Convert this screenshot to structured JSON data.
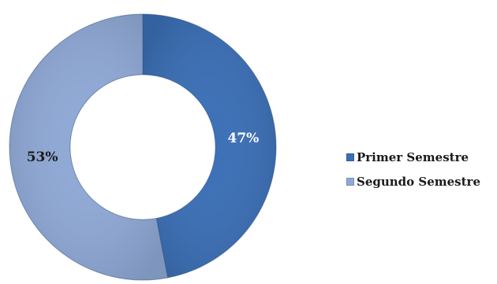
{
  "chart_data": {
    "type": "pie",
    "style": "doughnut",
    "title": "",
    "legend_position": "right",
    "series": [
      {
        "name": "Primer Semestre",
        "value": 47,
        "label": "47%",
        "color": "#3b6fb6",
        "label_color": "#ffffff"
      },
      {
        "name": "Segundo Semestre",
        "value": 53,
        "label": "53%",
        "color": "#8fa9d6",
        "label_color": "#1a1a1a"
      }
    ]
  }
}
